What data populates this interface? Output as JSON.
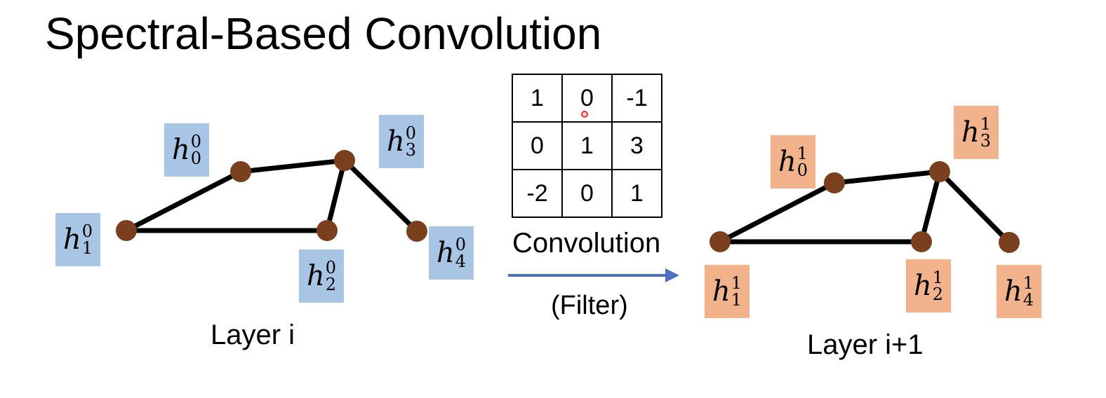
{
  "title": "Spectral-Based Convolution",
  "colors": {
    "input_label_bg": "#a9c5e6",
    "output_label_bg": "#f2b38c",
    "node": "#7a3f1d",
    "edge": "#000000",
    "arrow": "#4f6fbf"
  },
  "layer_left": {
    "caption": "Layer i",
    "labels": [
      {
        "base": "h",
        "sup": "0",
        "sub": "0"
      },
      {
        "base": "h",
        "sup": "0",
        "sub": "1"
      },
      {
        "base": "h",
        "sup": "0",
        "sub": "2"
      },
      {
        "base": "h",
        "sup": "0",
        "sub": "3"
      },
      {
        "base": "h",
        "sup": "0",
        "sub": "4"
      }
    ]
  },
  "layer_right": {
    "caption": "Layer i+1",
    "labels": [
      {
        "base": "h",
        "sup": "1",
        "sub": "0"
      },
      {
        "base": "h",
        "sup": "1",
        "sub": "1"
      },
      {
        "base": "h",
        "sup": "1",
        "sub": "2"
      },
      {
        "base": "h",
        "sup": "1",
        "sub": "3"
      },
      {
        "base": "h",
        "sup": "1",
        "sub": "4"
      }
    ]
  },
  "edges": [
    [
      1,
      0
    ],
    [
      0,
      3
    ],
    [
      1,
      2
    ],
    [
      2,
      3
    ],
    [
      3,
      4
    ]
  ],
  "filter": {
    "matrix": [
      [
        "1",
        "0",
        "-1"
      ],
      [
        "0",
        "1",
        "3"
      ],
      [
        "-2",
        "0",
        "1"
      ]
    ],
    "label": "Convolution",
    "sublabel": "(Filter)"
  }
}
